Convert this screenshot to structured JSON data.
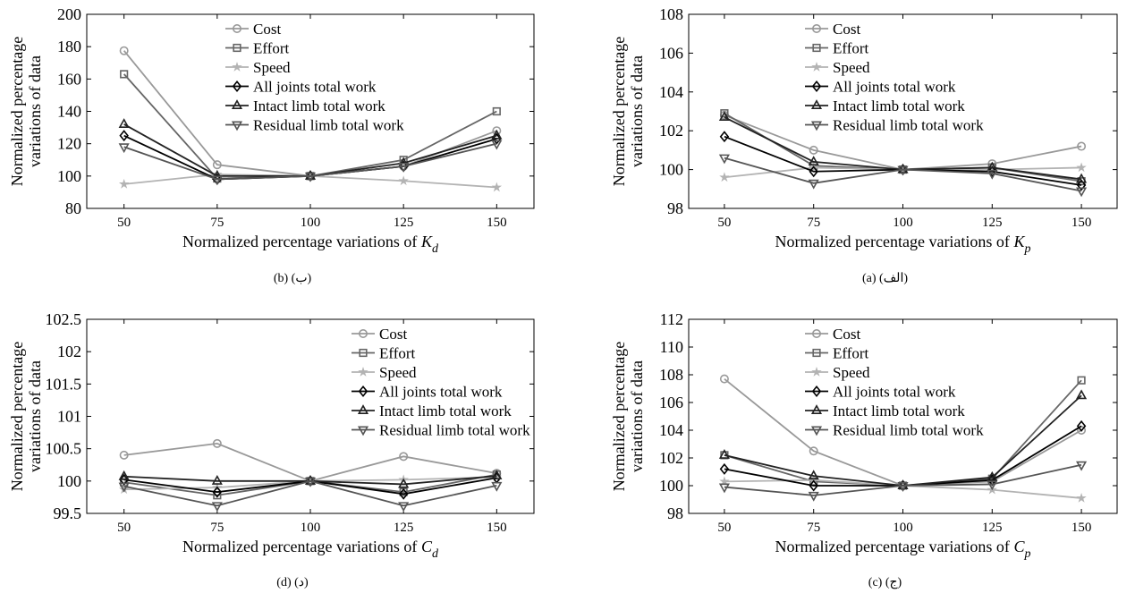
{
  "legend_labels": [
    "Cost",
    "Effort",
    "Speed",
    "All joints total work",
    "Intact limb total work",
    "Residual limb total work"
  ],
  "series_colors": [
    "#999999",
    "#666666",
    "#b3b3b3",
    "#000000",
    "#222222",
    "#555555"
  ],
  "series_markers": [
    "circle",
    "square",
    "star",
    "diamond",
    "triangle-up",
    "triangle-down"
  ],
  "chart_data": [
    {
      "type": "line",
      "ylabel": [
        "Normalized percentage",
        "variations of data"
      ],
      "xlabel_text": "Normalized percentage variations of ",
      "xlabel_var": "K",
      "xlabel_sub": "d",
      "caption": "(b)  (ب)",
      "x": [
        50,
        75,
        100,
        125,
        150
      ],
      "ylim": [
        80,
        200
      ],
      "yticks": [
        "80",
        "100",
        "120",
        "140",
        "160",
        "180",
        "200"
      ],
      "xticks": [
        "50",
        "75",
        "100",
        "125",
        "150"
      ],
      "series": [
        {
          "name": "Cost",
          "values": [
            177.5,
            107,
            100,
            106,
            128
          ]
        },
        {
          "name": "Effort",
          "values": [
            163,
            98.5,
            100,
            110,
            140
          ]
        },
        {
          "name": "Speed",
          "values": [
            95,
            101,
            100,
            97,
            93
          ]
        },
        {
          "name": "All joints total work",
          "values": [
            125,
            98,
            100,
            106,
            123
          ]
        },
        {
          "name": "Intact limb total work",
          "values": [
            132,
            100,
            100,
            108,
            125
          ]
        },
        {
          "name": "Residual limb total work",
          "values": [
            118,
            98,
            100,
            106,
            120
          ]
        }
      ]
    },
    {
      "type": "line",
      "ylabel": [
        "Normalized percentage",
        "variations of data"
      ],
      "xlabel_text": "Normalized percentage variations of ",
      "xlabel_var": "K",
      "xlabel_sub": "p",
      "caption": "(a)  (الف)",
      "x": [
        50,
        75,
        100,
        125,
        150
      ],
      "ylim": [
        98,
        108
      ],
      "yticks": [
        "98",
        "100",
        "102",
        "104",
        "106",
        "108"
      ],
      "xticks": [
        "50",
        "75",
        "100",
        "125",
        "150"
      ],
      "series": [
        {
          "name": "Cost",
          "values": [
            102.8,
            101.0,
            100,
            100.3,
            101.2
          ]
        },
        {
          "name": "Effort",
          "values": [
            102.9,
            100.2,
            100,
            100.1,
            99.4
          ]
        },
        {
          "name": "Speed",
          "values": [
            99.6,
            100.1,
            100,
            100.0,
            100.1
          ]
        },
        {
          "name": "All joints total work",
          "values": [
            101.7,
            99.9,
            100,
            99.9,
            99.2
          ]
        },
        {
          "name": "Intact limb total work",
          "values": [
            102.7,
            100.4,
            100,
            100.1,
            99.5
          ]
        },
        {
          "name": "Residual limb total work",
          "values": [
            100.6,
            99.3,
            100,
            99.8,
            98.9
          ]
        }
      ]
    },
    {
      "type": "line",
      "ylabel": [
        "Normalized percentage",
        "variations of data"
      ],
      "xlabel_text": "Normalized percentage variations of ",
      "xlabel_var": "C",
      "xlabel_sub": "d",
      "caption": "(d) (د)",
      "x": [
        50,
        75,
        100,
        125,
        150
      ],
      "ylim": [
        99.5,
        102.5
      ],
      "yticks": [
        "99.5",
        "100",
        "100.5",
        "101",
        "101.5",
        "102",
        "102.5"
      ],
      "xticks": [
        "50",
        "75",
        "100",
        "125",
        "150"
      ],
      "series": [
        {
          "name": "Cost",
          "values": [
            100.4,
            100.58,
            100,
            100.38,
            100.12
          ]
        },
        {
          "name": "Effort",
          "values": [
            99.98,
            99.78,
            100,
            99.83,
            100.1
          ]
        },
        {
          "name": "Speed",
          "values": [
            99.87,
            99.9,
            100,
            100.02,
            100.06
          ]
        },
        {
          "name": "All joints total work",
          "values": [
            100.02,
            99.83,
            100,
            99.8,
            100.05
          ]
        },
        {
          "name": "Intact limb total work",
          "values": [
            100.07,
            100.0,
            100,
            99.95,
            100.08
          ]
        },
        {
          "name": "Residual limb total work",
          "values": [
            99.92,
            99.62,
            100,
            99.62,
            99.93
          ]
        }
      ]
    },
    {
      "type": "line",
      "ylabel": [
        "Normalized percentage",
        "variations of data"
      ],
      "xlabel_text": "Normalized percentage variations of ",
      "xlabel_var": "C",
      "xlabel_sub": "p",
      "caption": "(c)  (ج)",
      "x": [
        50,
        75,
        100,
        125,
        150
      ],
      "ylim": [
        98,
        112
      ],
      "yticks": [
        "98",
        "100",
        "102",
        "104",
        "106",
        "108",
        "110",
        "112"
      ],
      "xticks": [
        "50",
        "75",
        "100",
        "125",
        "150"
      ],
      "series": [
        {
          "name": "Cost",
          "values": [
            107.7,
            102.5,
            100,
            100.3,
            104.0
          ]
        },
        {
          "name": "Effort",
          "values": [
            102.2,
            100.3,
            100,
            100.5,
            107.6
          ]
        },
        {
          "name": "Speed",
          "values": [
            100.3,
            100.4,
            100,
            99.7,
            99.1
          ]
        },
        {
          "name": "All joints total work",
          "values": [
            101.2,
            100.0,
            100,
            100.4,
            104.3
          ]
        },
        {
          "name": "Intact limb total work",
          "values": [
            102.2,
            100.7,
            100,
            100.6,
            106.5
          ]
        },
        {
          "name": "Residual limb total work",
          "values": [
            99.9,
            99.3,
            100,
            100.1,
            101.5
          ]
        }
      ]
    }
  ]
}
